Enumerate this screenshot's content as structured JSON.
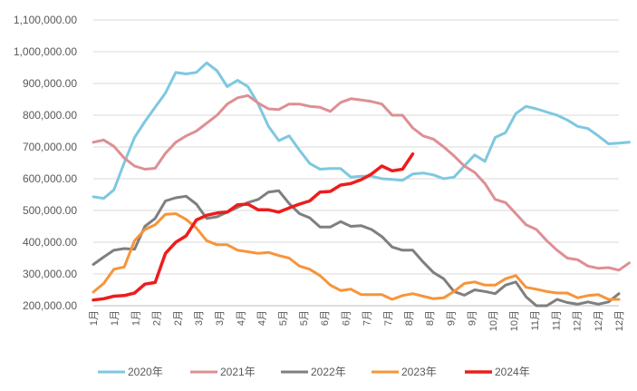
{
  "chart_data": {
    "type": "line",
    "title": "",
    "xlabel": "",
    "ylabel": "",
    "ylim": [
      200000,
      1100000
    ],
    "yticks": [
      1100000,
      1000000,
      900000,
      800000,
      700000,
      600000,
      500000,
      400000,
      300000,
      200000
    ],
    "ytick_labels": [
      "1,100,000.00",
      "1,000,000.00",
      "900,000.00",
      "800,000.00",
      "700,000.00",
      "600,000.00",
      "500,000.00",
      "400,000.00",
      "300,000.00",
      "200,000.00"
    ],
    "x_tick_labels": [
      "1月",
      "1月",
      "1月",
      "2月",
      "2月",
      "3月",
      "3月",
      "4月",
      "4月",
      "5月",
      "5月",
      "6月",
      "6月",
      "7月",
      "7月",
      "8月",
      "8月",
      "9月",
      "9月",
      "10月",
      "10月",
      "11月",
      "11月",
      "12月",
      "12月",
      "12月"
    ],
    "weeks": 52,
    "legend_position": "bottom",
    "series": [
      {
        "name": "2020年",
        "color": "#7ec8e0",
        "values": [
          543000,
          538000,
          565000,
          650000,
          730000,
          780000,
          825000,
          870000,
          935000,
          930000,
          935000,
          965000,
          940000,
          890000,
          910000,
          890000,
          835000,
          765000,
          720000,
          735000,
          690000,
          648000,
          630000,
          632000,
          632000,
          605000,
          608000,
          608000,
          600000,
          598000,
          595000,
          615000,
          618000,
          612000,
          600000,
          605000,
          640000,
          675000,
          655000,
          730000,
          745000,
          805000,
          828000,
          820000,
          810000,
          800000,
          785000,
          765000,
          758000,
          735000,
          710000,
          712000,
          715000
        ]
      },
      {
        "name": "2021年",
        "color": "#de8f93",
        "values": [
          715000,
          722000,
          702000,
          665000,
          640000,
          630000,
          633000,
          680000,
          715000,
          735000,
          750000,
          775000,
          800000,
          835000,
          855000,
          862000,
          838000,
          820000,
          818000,
          835000,
          835000,
          828000,
          825000,
          812000,
          840000,
          852000,
          848000,
          843000,
          835000,
          800000,
          800000,
          760000,
          735000,
          725000,
          700000,
          672000,
          640000,
          620000,
          585000,
          535000,
          525000,
          490000,
          455000,
          440000,
          405000,
          375000,
          350000,
          345000,
          325000,
          318000,
          320000,
          312000,
          335000
        ]
      },
      {
        "name": "2022年",
        "color": "#7f7f7f",
        "values": [
          330000,
          353000,
          375000,
          380000,
          378000,
          450000,
          475000,
          530000,
          540000,
          545000,
          520000,
          475000,
          480000,
          495000,
          510000,
          525000,
          535000,
          558000,
          562000,
          522000,
          490000,
          477000,
          448000,
          448000,
          465000,
          450000,
          452000,
          440000,
          418000,
          385000,
          375000,
          375000,
          338000,
          305000,
          285000,
          245000,
          233000,
          250000,
          245000,
          238000,
          265000,
          275000,
          228000,
          200000,
          200000,
          220000,
          210000,
          205000,
          212000,
          205000,
          212000,
          238000
        ]
      },
      {
        "name": "2023年",
        "color": "#f7943a",
        "values": [
          243000,
          270000,
          315000,
          322000,
          405000,
          440000,
          455000,
          488000,
          490000,
          472000,
          445000,
          405000,
          392000,
          392000,
          375000,
          370000,
          365000,
          368000,
          358000,
          350000,
          325000,
          315000,
          295000,
          265000,
          248000,
          252000,
          235000,
          235000,
          235000,
          220000,
          232000,
          238000,
          230000,
          222000,
          225000,
          245000,
          270000,
          275000,
          265000,
          265000,
          285000,
          295000,
          258000,
          252000,
          245000,
          240000,
          240000,
          225000,
          232000,
          235000,
          220000,
          220000
        ]
      },
      {
        "name": "2024年",
        "color": "#ee1c1c",
        "values": [
          218000,
          222000,
          230000,
          232000,
          240000,
          268000,
          273000,
          365000,
          400000,
          420000,
          470000,
          485000,
          492000,
          495000,
          518000,
          520000,
          502000,
          502000,
          495000,
          508000,
          520000,
          530000,
          558000,
          560000,
          580000,
          585000,
          597000,
          615000,
          640000,
          625000,
          630000,
          678000
        ]
      }
    ]
  }
}
